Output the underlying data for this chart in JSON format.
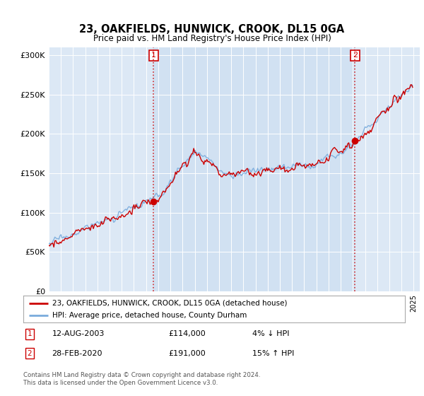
{
  "title": "23, OAKFIELDS, HUNWICK, CROOK, DL15 0GA",
  "subtitle": "Price paid vs. HM Land Registry's House Price Index (HPI)",
  "ylim": [
    0,
    310000
  ],
  "yticks": [
    0,
    50000,
    100000,
    150000,
    200000,
    250000,
    300000
  ],
  "ytick_labels": [
    "£0",
    "£50K",
    "£100K",
    "£150K",
    "£200K",
    "£250K",
    "£300K"
  ],
  "sale1_year": 2003.62,
  "sale1_price": 114000,
  "sale1_label": "12-AUG-2003",
  "sale1_amount": "£114,000",
  "sale1_pct": "4% ↓ HPI",
  "sale2_year": 2020.17,
  "sale2_price": 191000,
  "sale2_label": "28-FEB-2020",
  "sale2_amount": "£191,000",
  "sale2_pct": "15% ↑ HPI",
  "legend_line1": "23, OAKFIELDS, HUNWICK, CROOK, DL15 0GA (detached house)",
  "legend_line2": "HPI: Average price, detached house, County Durham",
  "footer": "Contains HM Land Registry data © Crown copyright and database right 2024.\nThis data is licensed under the Open Government Licence v3.0.",
  "hpi_color": "#7aabdc",
  "price_color": "#cc0000",
  "vline_color": "#cc0000",
  "background_color": "#ffffff",
  "plot_bg_color": "#dce8f5",
  "shade_color": "#dce8f5"
}
